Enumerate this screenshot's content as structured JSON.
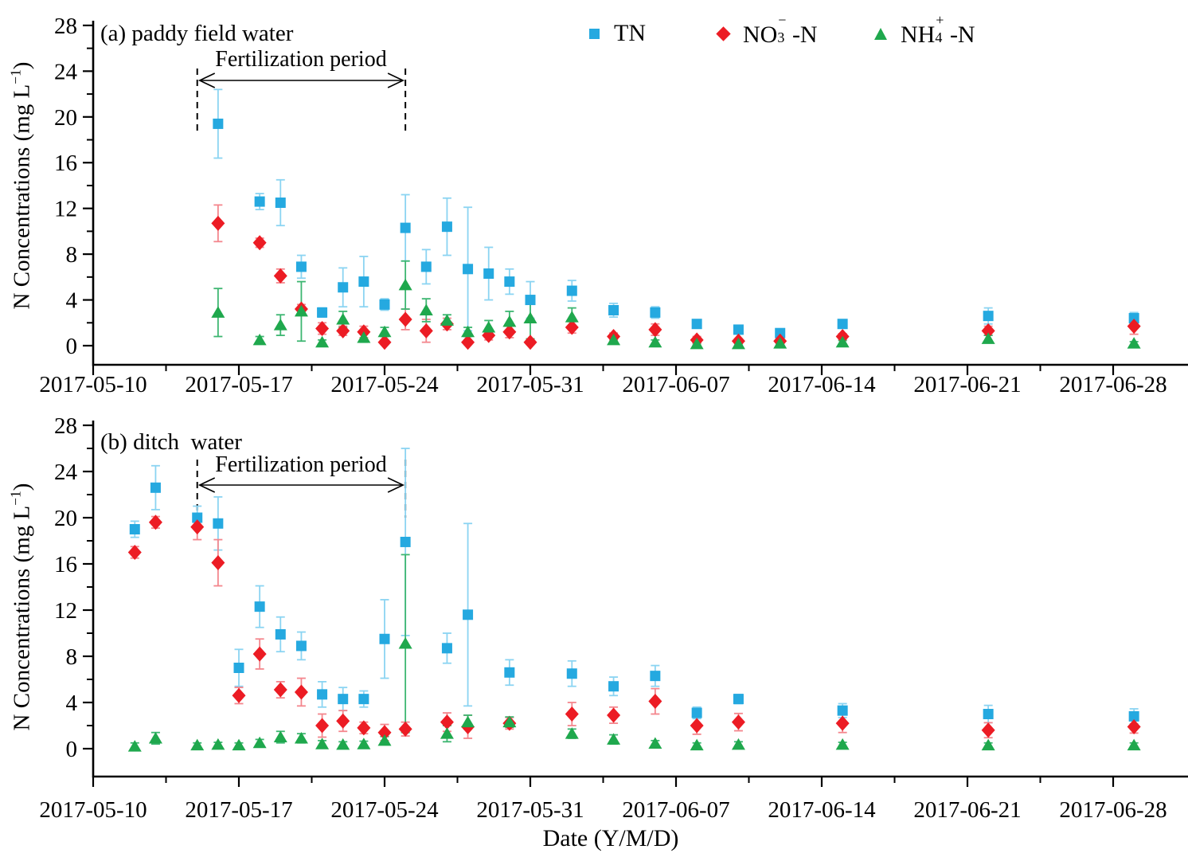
{
  "header": {
    "panel_a_label": "(a) paddy field water",
    "panel_b_label": "(b) ditch  water",
    "x_axis_title": "Date (Y/M/D)",
    "y_axis_title_main": "N Concentrations (mg L",
    "y_axis_title_sup": "−1",
    "y_axis_title_close": ")",
    "annotation_label": "Fertilization period"
  },
  "legend": {
    "items": [
      {
        "key": "TN",
        "base": "TN",
        "sub": "",
        "sup": "",
        "rest": "",
        "marker": "square",
        "color": "#25a9e0"
      },
      {
        "key": "NO3-N",
        "base": "NO",
        "sub": "3",
        "sup": "−",
        "rest": "-N",
        "marker": "diamond",
        "color": "#ec1c24"
      },
      {
        "key": "NH4-N",
        "base": "NH",
        "sub": "4",
        "sup": "+",
        "rest": "-N",
        "marker": "triangle",
        "color": "#1fa84d"
      }
    ]
  },
  "chart_data": [
    {
      "type": "scatter",
      "panel": "a",
      "title": "(a) paddy field water",
      "xlabel": "Date (Y/M/D)",
      "ylabel": "N Concentrations (mg L-1)",
      "ylim": [
        -2,
        28
      ],
      "grid": false,
      "legend_position": "top",
      "x_axis": {
        "tick_labels": [
          "2017-05-10",
          "2017-05-17",
          "2017-05-24",
          "2017-05-31",
          "2017-06-07",
          "2017-06-14",
          "2017-06-21",
          "2017-06-28"
        ],
        "minor_interval_days": 3.5
      },
      "y_axis": {
        "ticks": [
          0,
          4,
          8,
          12,
          16,
          20,
          24,
          28
        ],
        "minor_step": 2
      },
      "fertilization_period": {
        "label": "Fertilization period",
        "start": "2017-05-15",
        "end": "2017-05-25"
      },
      "series": [
        {
          "name": "TN",
          "marker": "square",
          "color": "#25a9e0",
          "errbar_color": "#8bd4f2",
          "points": [
            [
              "2017-05-16",
              19.4,
              3.0
            ],
            [
              "2017-05-18",
              12.6,
              0.7
            ],
            [
              "2017-05-19",
              12.5,
              2.0
            ],
            [
              "2017-05-20",
              6.9,
              1.0
            ],
            [
              "2017-05-21",
              2.9,
              0.4
            ],
            [
              "2017-05-22",
              5.1,
              1.7
            ],
            [
              "2017-05-23",
              5.6,
              2.2
            ],
            [
              "2017-05-24",
              3.6,
              0.5
            ],
            [
              "2017-05-25",
              10.3,
              2.9
            ],
            [
              "2017-05-26",
              6.9,
              1.5
            ],
            [
              "2017-05-27",
              10.4,
              2.5
            ],
            [
              "2017-05-28",
              6.7,
              5.4
            ],
            [
              "2017-05-29",
              6.3,
              2.3
            ],
            [
              "2017-05-30",
              5.6,
              1.1
            ],
            [
              "2017-05-31",
              4.0,
              1.6
            ],
            [
              "2017-06-02",
              4.8,
              0.9
            ],
            [
              "2017-06-04",
              3.1,
              0.6
            ],
            [
              "2017-06-06",
              2.9,
              0.5
            ],
            [
              "2017-06-08",
              1.9,
              0.3
            ],
            [
              "2017-06-10",
              1.4,
              0.3
            ],
            [
              "2017-06-12",
              1.1,
              0.2
            ],
            [
              "2017-06-15",
              1.9,
              0.3
            ],
            [
              "2017-06-22",
              2.6,
              0.7
            ],
            [
              "2017-06-29",
              2.4,
              0.5
            ]
          ]
        },
        {
          "name": "NO3-N",
          "marker": "diamond",
          "color": "#ec1c24",
          "errbar_color": "#f4868d",
          "points": [
            [
              "2017-05-16",
              10.7,
              1.6
            ],
            [
              "2017-05-18",
              9.0,
              0.4
            ],
            [
              "2017-05-19",
              6.1,
              0.6
            ],
            [
              "2017-05-20",
              3.2,
              0.4
            ],
            [
              "2017-05-21",
              1.5,
              0.5
            ],
            [
              "2017-05-22",
              1.3,
              0.4
            ],
            [
              "2017-05-23",
              1.2,
              0.5
            ],
            [
              "2017-05-24",
              0.3,
              0.2
            ],
            [
              "2017-05-25",
              2.3,
              0.9
            ],
            [
              "2017-05-26",
              1.3,
              1.0
            ],
            [
              "2017-05-27",
              1.9,
              0.5
            ],
            [
              "2017-05-28",
              0.3,
              0.2
            ],
            [
              "2017-05-29",
              0.9,
              0.4
            ],
            [
              "2017-05-30",
              1.2,
              0.5
            ],
            [
              "2017-05-31",
              0.3,
              0.2
            ],
            [
              "2017-06-02",
              1.6,
              0.5
            ],
            [
              "2017-06-04",
              0.8,
              0.3
            ],
            [
              "2017-06-06",
              1.4,
              0.5
            ],
            [
              "2017-06-08",
              0.5,
              0.3
            ],
            [
              "2017-06-10",
              0.4,
              0.2
            ],
            [
              "2017-06-12",
              0.4,
              0.2
            ],
            [
              "2017-06-15",
              0.8,
              0.25
            ],
            [
              "2017-06-22",
              1.3,
              0.4
            ],
            [
              "2017-06-29",
              1.7,
              0.7
            ]
          ]
        },
        {
          "name": "NH4-N",
          "marker": "triangle",
          "color": "#1fa84d",
          "errbar_color": "#3db671",
          "points": [
            [
              "2017-05-16",
              2.9,
              2.1
            ],
            [
              "2017-05-18",
              0.5,
              0.3
            ],
            [
              "2017-05-19",
              1.8,
              0.9
            ],
            [
              "2017-05-20",
              3.0,
              2.6
            ],
            [
              "2017-05-21",
              0.3,
              0.2
            ],
            [
              "2017-05-22",
              2.3,
              0.7
            ],
            [
              "2017-05-23",
              0.7,
              0.4
            ],
            [
              "2017-05-24",
              1.2,
              0.4
            ],
            [
              "2017-05-25",
              5.3,
              2.1
            ],
            [
              "2017-05-26",
              3.1,
              1.0
            ],
            [
              "2017-05-27",
              2.2,
              0.5
            ],
            [
              "2017-05-28",
              1.2,
              0.4
            ],
            [
              "2017-05-29",
              1.6,
              0.6
            ],
            [
              "2017-05-30",
              2.1,
              0.9
            ],
            [
              "2017-05-31",
              2.4,
              1.8
            ],
            [
              "2017-06-02",
              2.5,
              0.8
            ],
            [
              "2017-06-04",
              0.5,
              0.3
            ],
            [
              "2017-06-06",
              0.3,
              0.2
            ],
            [
              "2017-06-08",
              0.15,
              0.1
            ],
            [
              "2017-06-10",
              0.15,
              0.1
            ],
            [
              "2017-06-12",
              0.2,
              0.1
            ],
            [
              "2017-06-15",
              0.3,
              0.15
            ],
            [
              "2017-06-22",
              0.6,
              0.3
            ],
            [
              "2017-06-29",
              0.2,
              0.15
            ]
          ]
        }
      ]
    },
    {
      "type": "scatter",
      "panel": "b",
      "title": "(b) ditch  water",
      "xlabel": "Date (Y/M/D)",
      "ylabel": "N Concentrations (mg L-1)",
      "ylim": [
        -2,
        28
      ],
      "grid": false,
      "x_axis": {
        "tick_labels": [
          "2017-05-10",
          "2017-05-17",
          "2017-05-24",
          "2017-05-31",
          "2017-06-07",
          "2017-06-14",
          "2017-06-21",
          "2017-06-28"
        ],
        "minor_interval_days": 3.5
      },
      "y_axis": {
        "ticks": [
          0,
          4,
          8,
          12,
          16,
          20,
          24,
          28
        ],
        "minor_step": 2
      },
      "fertilization_period": {
        "label": "Fertilization period",
        "start": "2017-05-15",
        "end": "2017-05-25"
      },
      "series": [
        {
          "name": "TN",
          "marker": "square",
          "color": "#25a9e0",
          "errbar_color": "#8bd4f2",
          "points": [
            [
              "2017-05-12",
              19.0,
              0.7
            ],
            [
              "2017-05-13",
              22.6,
              1.9
            ],
            [
              "2017-05-15",
              20.0,
              1.0
            ],
            [
              "2017-05-16",
              19.5,
              2.3
            ],
            [
              "2017-05-17",
              7.0,
              1.6
            ],
            [
              "2017-05-18",
              12.3,
              1.8
            ],
            [
              "2017-05-19",
              9.9,
              1.5
            ],
            [
              "2017-05-20",
              8.9,
              1.2
            ],
            [
              "2017-05-21",
              4.7,
              1.1
            ],
            [
              "2017-05-22",
              4.3,
              1.0
            ],
            [
              "2017-05-23",
              4.3,
              0.7
            ],
            [
              "2017-05-24",
              9.5,
              3.4
            ],
            [
              "2017-05-25",
              17.9,
              8.1
            ],
            [
              "2017-05-27",
              8.7,
              1.3
            ],
            [
              "2017-05-28",
              11.6,
              7.9
            ],
            [
              "2017-05-30",
              6.6,
              1.1
            ],
            [
              "2017-06-02",
              6.5,
              1.1
            ],
            [
              "2017-06-04",
              5.4,
              0.8
            ],
            [
              "2017-06-06",
              6.3,
              0.9
            ],
            [
              "2017-06-08",
              3.1,
              0.5
            ],
            [
              "2017-06-10",
              4.3,
              0.4
            ],
            [
              "2017-06-15",
              3.3,
              0.6
            ],
            [
              "2017-06-22",
              3.0,
              0.75
            ],
            [
              "2017-06-29",
              2.8,
              0.65
            ]
          ]
        },
        {
          "name": "NO3-N",
          "marker": "diamond",
          "color": "#ec1c24",
          "errbar_color": "#f4868d",
          "points": [
            [
              "2017-05-12",
              17.0,
              0.5
            ],
            [
              "2017-05-13",
              19.6,
              0.5
            ],
            [
              "2017-05-15",
              19.2,
              1.1
            ],
            [
              "2017-05-16",
              16.1,
              2.0
            ],
            [
              "2017-05-17",
              4.6,
              0.7
            ],
            [
              "2017-05-18",
              8.2,
              1.3
            ],
            [
              "2017-05-19",
              5.1,
              0.7
            ],
            [
              "2017-05-20",
              4.9,
              1.2
            ],
            [
              "2017-05-21",
              2.0,
              1.0
            ],
            [
              "2017-05-22",
              2.4,
              0.9
            ],
            [
              "2017-05-23",
              1.8,
              0.5
            ],
            [
              "2017-05-24",
              1.4,
              0.7
            ],
            [
              "2017-05-25",
              1.7,
              0.6
            ],
            [
              "2017-05-27",
              2.3,
              0.8
            ],
            [
              "2017-05-28",
              1.9,
              1.0
            ],
            [
              "2017-05-30",
              2.2,
              0.5
            ],
            [
              "2017-06-02",
              3.0,
              1.0
            ],
            [
              "2017-06-04",
              2.9,
              0.7
            ],
            [
              "2017-06-06",
              4.1,
              1.1
            ],
            [
              "2017-06-08",
              2.0,
              0.75
            ],
            [
              "2017-06-10",
              2.3,
              0.75
            ],
            [
              "2017-06-15",
              2.2,
              0.8
            ],
            [
              "2017-06-22",
              1.6,
              0.65
            ],
            [
              "2017-06-29",
              1.9,
              0.55
            ]
          ]
        },
        {
          "name": "NH4-N",
          "marker": "triangle",
          "color": "#1fa84d",
          "errbar_color": "#3db671",
          "points": [
            [
              "2017-05-12",
              0.2,
              0.3
            ],
            [
              "2017-05-13",
              0.9,
              0.5
            ],
            [
              "2017-05-15",
              0.3,
              0.2
            ],
            [
              "2017-05-16",
              0.35,
              0.2
            ],
            [
              "2017-05-17",
              0.3,
              0.2
            ],
            [
              "2017-05-18",
              0.5,
              0.3
            ],
            [
              "2017-05-19",
              1.0,
              0.5
            ],
            [
              "2017-05-20",
              0.9,
              0.4
            ],
            [
              "2017-05-21",
              0.4,
              0.3
            ],
            [
              "2017-05-22",
              0.35,
              0.25
            ],
            [
              "2017-05-23",
              0.4,
              0.25
            ],
            [
              "2017-05-24",
              0.7,
              0.35
            ],
            [
              "2017-05-25",
              9.1,
              7.7
            ],
            [
              "2017-05-27",
              1.3,
              0.7
            ],
            [
              "2017-05-28",
              2.3,
              0.6
            ],
            [
              "2017-05-30",
              2.3,
              0.45
            ],
            [
              "2017-06-02",
              1.3,
              0.4
            ],
            [
              "2017-06-04",
              0.8,
              0.4
            ],
            [
              "2017-06-06",
              0.45,
              0.25
            ],
            [
              "2017-06-08",
              0.3,
              0.2
            ],
            [
              "2017-06-10",
              0.35,
              0.25
            ],
            [
              "2017-06-15",
              0.35,
              0.2
            ],
            [
              "2017-06-22",
              0.3,
              0.2
            ],
            [
              "2017-06-29",
              0.3,
              0.2
            ]
          ]
        }
      ]
    }
  ]
}
